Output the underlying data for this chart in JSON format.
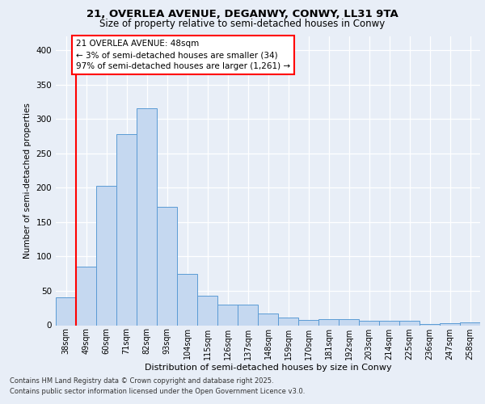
{
  "title_line1": "21, OVERLEA AVENUE, DEGANWY, CONWY, LL31 9TA",
  "title_line2": "Size of property relative to semi-detached houses in Conwy",
  "xlabel": "Distribution of semi-detached houses by size in Conwy",
  "ylabel": "Number of semi-detached properties",
  "categories": [
    "38sqm",
    "49sqm",
    "60sqm",
    "71sqm",
    "82sqm",
    "93sqm",
    "104sqm",
    "115sqm",
    "126sqm",
    "137sqm",
    "148sqm",
    "159sqm",
    "170sqm",
    "181sqm",
    "192sqm",
    "203sqm",
    "214sqm",
    "225sqm",
    "236sqm",
    "247sqm",
    "258sqm"
  ],
  "values": [
    40,
    85,
    203,
    278,
    315,
    172,
    75,
    43,
    30,
    30,
    17,
    11,
    8,
    9,
    9,
    7,
    7,
    7,
    2,
    3,
    4
  ],
  "bar_color": "#c5d8f0",
  "bar_edge_color": "#5b9bd5",
  "marker_color": "red",
  "annotation_title": "21 OVERLEA AVENUE: 48sqm",
  "annotation_line1": "← 3% of semi-detached houses are smaller (34)",
  "annotation_line2": "97% of semi-detached houses are larger (1,261) →",
  "ylim": [
    0,
    420
  ],
  "yticks": [
    0,
    50,
    100,
    150,
    200,
    250,
    300,
    350,
    400
  ],
  "footer_line1": "Contains HM Land Registry data © Crown copyright and database right 2025.",
  "footer_line2": "Contains public sector information licensed under the Open Government Licence v3.0.",
  "background_color": "#e8eef7",
  "plot_background_color": "#e8eef7"
}
